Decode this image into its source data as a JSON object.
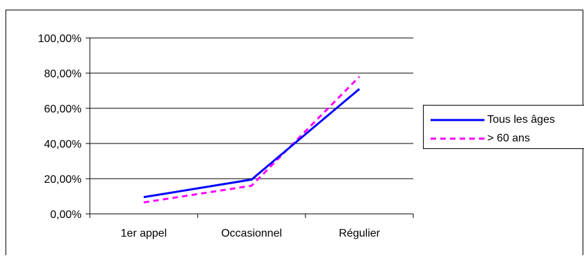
{
  "chart_data": {
    "type": "line",
    "categories": [
      "1er appel",
      "Occasionnel",
      "Régulier"
    ],
    "y_ticks": [
      "0,00%",
      "20,00%",
      "40,00%",
      "60,00%",
      "80,00%",
      "100,00%"
    ],
    "ylim": [
      0,
      100
    ],
    "grid": true,
    "legend_position": "right",
    "series": [
      {
        "name": "Tous les âges",
        "values": [
          9.5,
          19.5,
          71
        ],
        "color": "#0000ff",
        "style": "solid"
      },
      {
        "name": "> 60 ans",
        "values": [
          6.5,
          16,
          78
        ],
        "color": "#ff00ff",
        "style": "dashed"
      }
    ]
  }
}
